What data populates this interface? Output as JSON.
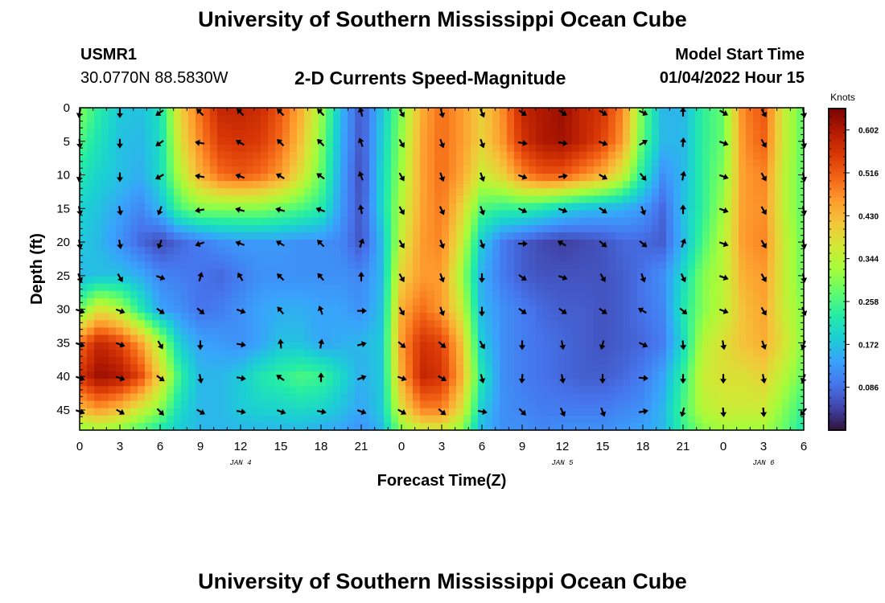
{
  "header": {
    "title": "University of Southern Mississippi Ocean Cube",
    "station_id": "USMR1",
    "station_coords": "30.0770N  88.5830W",
    "plot_title": "2-D Currents Speed-Magnitude",
    "start_label": "Model Start Time",
    "start_value": "01/04/2022 Hour 15"
  },
  "footer": {
    "title": "University of Southern Mississippi Ocean Cube"
  },
  "chart_data": {
    "type": "heatmap",
    "title": "2-D Currents Speed-Magnitude",
    "xlabel": "Forecast Time(Z)",
    "ylabel": "Depth (ft)",
    "x_tick_labels": [
      "0",
      "3",
      "6",
      "9",
      "12",
      "15",
      "18",
      "21",
      "0",
      "3",
      "6",
      "9",
      "12",
      "15",
      "18",
      "21",
      "0",
      "3",
      "6"
    ],
    "x_hours": [
      0,
      3,
      6,
      9,
      12,
      15,
      18,
      21,
      24,
      27,
      30,
      33,
      36,
      39,
      42,
      45,
      48,
      51,
      54
    ],
    "xlim": [
      0,
      54
    ],
    "date_labels": [
      {
        "label": "JAN 4",
        "hour": 12
      },
      {
        "label": "JAN 5",
        "hour": 36
      },
      {
        "label": "JAN 6",
        "hour": 51
      }
    ],
    "y_ticks": [
      0,
      5,
      10,
      15,
      20,
      25,
      30,
      35,
      40,
      45
    ],
    "ylim": [
      0,
      48
    ],
    "y_inverted": true,
    "colorbar": {
      "label": "Knots",
      "ticks": [
        "0.086",
        "0.172",
        "0.258",
        "0.344",
        "0.430",
        "0.516",
        "0.602"
      ],
      "range": [
        0.0,
        0.645
      ],
      "colors": [
        "#30123b",
        "#4145ab",
        "#4675ed",
        "#39a2fc",
        "#1bcfd4",
        "#24eca6",
        "#61fc6c",
        "#a4fc3b",
        "#d1e834",
        "#f3c63a",
        "#fe9b2d",
        "#f36315",
        "#d93806",
        "#b11901",
        "#7a0403"
      ]
    },
    "speed_grid_depths_ft": [
      0,
      5,
      10,
      15,
      20,
      25,
      30,
      35,
      40,
      45,
      48
    ],
    "speed_grid_hours": [
      0,
      1.5,
      3,
      4.5,
      6,
      7.5,
      9,
      10.5,
      12,
      13.5,
      15,
      16.5,
      18,
      19.5,
      21,
      22.5,
      24,
      25.5,
      27,
      28.5,
      30,
      31.5,
      33,
      34.5,
      36,
      37.5,
      39,
      40.5,
      42,
      43.5,
      45,
      46.5,
      48,
      49.5,
      51,
      52.5,
      54
    ],
    "speed_knots": [
      [
        0.3,
        0.23,
        0.18,
        0.17,
        0.21,
        0.4,
        0.5,
        0.58,
        0.58,
        0.57,
        0.52,
        0.44,
        0.32,
        0.16,
        0.06,
        0.17,
        0.3,
        0.44,
        0.5,
        0.46,
        0.4,
        0.47,
        0.58,
        0.6,
        0.62,
        0.58,
        0.56,
        0.48,
        0.28,
        0.16,
        0.16,
        0.24,
        0.28,
        0.48,
        0.52,
        0.36,
        0.27
      ],
      [
        0.26,
        0.21,
        0.17,
        0.16,
        0.2,
        0.38,
        0.48,
        0.55,
        0.56,
        0.55,
        0.5,
        0.42,
        0.3,
        0.15,
        0.06,
        0.18,
        0.31,
        0.45,
        0.5,
        0.46,
        0.4,
        0.46,
        0.56,
        0.6,
        0.61,
        0.58,
        0.54,
        0.46,
        0.27,
        0.16,
        0.16,
        0.24,
        0.28,
        0.47,
        0.51,
        0.36,
        0.27
      ],
      [
        0.22,
        0.19,
        0.17,
        0.15,
        0.2,
        0.34,
        0.44,
        0.5,
        0.52,
        0.5,
        0.46,
        0.38,
        0.28,
        0.14,
        0.05,
        0.19,
        0.32,
        0.45,
        0.5,
        0.45,
        0.36,
        0.4,
        0.48,
        0.52,
        0.52,
        0.48,
        0.44,
        0.36,
        0.22,
        0.12,
        0.16,
        0.24,
        0.3,
        0.46,
        0.48,
        0.35,
        0.27
      ],
      [
        0.19,
        0.17,
        0.14,
        0.11,
        0.16,
        0.26,
        0.3,
        0.3,
        0.3,
        0.3,
        0.28,
        0.26,
        0.23,
        0.13,
        0.06,
        0.19,
        0.34,
        0.45,
        0.49,
        0.4,
        0.26,
        0.24,
        0.24,
        0.22,
        0.19,
        0.17,
        0.16,
        0.15,
        0.13,
        0.08,
        0.17,
        0.24,
        0.32,
        0.46,
        0.47,
        0.35,
        0.27
      ],
      [
        0.18,
        0.16,
        0.12,
        0.08,
        0.05,
        0.08,
        0.1,
        0.12,
        0.13,
        0.13,
        0.13,
        0.12,
        0.12,
        0.11,
        0.06,
        0.16,
        0.36,
        0.46,
        0.48,
        0.36,
        0.18,
        0.1,
        0.07,
        0.05,
        0.04,
        0.05,
        0.06,
        0.08,
        0.08,
        0.07,
        0.16,
        0.26,
        0.34,
        0.46,
        0.48,
        0.36,
        0.28
      ],
      [
        0.16,
        0.17,
        0.17,
        0.15,
        0.11,
        0.1,
        0.09,
        0.08,
        0.1,
        0.12,
        0.12,
        0.12,
        0.12,
        0.12,
        0.11,
        0.16,
        0.4,
        0.46,
        0.46,
        0.32,
        0.15,
        0.1,
        0.07,
        0.06,
        0.06,
        0.06,
        0.06,
        0.07,
        0.09,
        0.12,
        0.2,
        0.3,
        0.34,
        0.44,
        0.46,
        0.36,
        0.28
      ],
      [
        0.28,
        0.38,
        0.33,
        0.23,
        0.14,
        0.12,
        0.09,
        0.1,
        0.12,
        0.14,
        0.15,
        0.15,
        0.14,
        0.14,
        0.12,
        0.17,
        0.44,
        0.5,
        0.46,
        0.36,
        0.16,
        0.12,
        0.1,
        0.08,
        0.07,
        0.07,
        0.06,
        0.07,
        0.09,
        0.11,
        0.22,
        0.3,
        0.35,
        0.42,
        0.45,
        0.36,
        0.3
      ],
      [
        0.5,
        0.58,
        0.54,
        0.46,
        0.33,
        0.18,
        0.14,
        0.13,
        0.12,
        0.14,
        0.17,
        0.17,
        0.14,
        0.15,
        0.16,
        0.18,
        0.46,
        0.56,
        0.54,
        0.42,
        0.18,
        0.12,
        0.1,
        0.09,
        0.08,
        0.07,
        0.06,
        0.07,
        0.08,
        0.1,
        0.2,
        0.34,
        0.38,
        0.42,
        0.44,
        0.38,
        0.3
      ],
      [
        0.56,
        0.62,
        0.6,
        0.54,
        0.4,
        0.24,
        0.16,
        0.16,
        0.18,
        0.22,
        0.24,
        0.26,
        0.25,
        0.2,
        0.15,
        0.18,
        0.44,
        0.58,
        0.56,
        0.44,
        0.22,
        0.12,
        0.1,
        0.09,
        0.08,
        0.07,
        0.07,
        0.08,
        0.1,
        0.14,
        0.24,
        0.36,
        0.38,
        0.38,
        0.4,
        0.34,
        0.28
      ],
      [
        0.42,
        0.46,
        0.42,
        0.36,
        0.3,
        0.2,
        0.16,
        0.16,
        0.18,
        0.19,
        0.19,
        0.2,
        0.19,
        0.17,
        0.14,
        0.18,
        0.38,
        0.48,
        0.48,
        0.38,
        0.18,
        0.12,
        0.11,
        0.1,
        0.1,
        0.1,
        0.1,
        0.11,
        0.12,
        0.16,
        0.26,
        0.34,
        0.36,
        0.36,
        0.36,
        0.3,
        0.24
      ],
      [
        0.3,
        0.32,
        0.3,
        0.26,
        0.22,
        0.18,
        0.16,
        0.16,
        0.16,
        0.16,
        0.16,
        0.16,
        0.15,
        0.14,
        0.12,
        0.16,
        0.3,
        0.36,
        0.36,
        0.3,
        0.16,
        0.12,
        0.12,
        0.11,
        0.12,
        0.12,
        0.12,
        0.13,
        0.14,
        0.16,
        0.24,
        0.3,
        0.32,
        0.32,
        0.32,
        0.28,
        0.22
      ]
    ],
    "vectors": {
      "note": "arrows show current direction at each hour (every 3 h) and depth; direction given as compass heading the flow points toward, degrees",
      "hours": [
        0,
        3,
        6,
        9,
        12,
        15,
        18,
        21,
        24,
        27,
        30,
        33,
        36,
        39,
        42,
        45,
        48,
        51,
        54
      ],
      "depths": [
        0,
        5,
        10,
        15,
        20,
        25,
        30,
        35,
        40,
        45
      ],
      "heading_deg": [
        [
          190,
          180,
          235,
          315,
          315,
          315,
          315,
          345,
          150,
          165,
          155,
          125,
          125,
          120,
          115,
          0,
          120,
          150,
          170
        ],
        [
          175,
          180,
          235,
          280,
          300,
          315,
          315,
          340,
          150,
          160,
          160,
          100,
          100,
          110,
          60,
          5,
          110,
          150,
          170
        ],
        [
          190,
          180,
          240,
          280,
          290,
          300,
          305,
          340,
          150,
          160,
          160,
          110,
          80,
          120,
          140,
          10,
          110,
          150,
          170
        ],
        [
          170,
          170,
          200,
          260,
          285,
          285,
          290,
          350,
          150,
          155,
          160,
          115,
          110,
          125,
          160,
          0,
          110,
          150,
          170
        ],
        [
          170,
          170,
          200,
          250,
          290,
          300,
          315,
          20,
          150,
          160,
          160,
          90,
          300,
          130,
          130,
          20,
          110,
          150,
          170
        ],
        [
          160,
          150,
          110,
          15,
          330,
          315,
          320,
          0,
          150,
          160,
          180,
          125,
          110,
          150,
          160,
          155,
          110,
          150,
          170
        ],
        [
          110,
          110,
          125,
          130,
          110,
          320,
          340,
          90,
          150,
          160,
          180,
          125,
          125,
          125,
          300,
          130,
          110,
          150,
          160
        ],
        [
          110,
          110,
          150,
          180,
          100,
          355,
          10,
          75,
          130,
          130,
          150,
          180,
          170,
          195,
          115,
          175,
          170,
          160,
          200
        ],
        [
          110,
          110,
          125,
          170,
          100,
          305,
          0,
          70,
          110,
          120,
          165,
          185,
          170,
          180,
          95,
          180,
          180,
          170,
          200
        ],
        [
          110,
          120,
          135,
          120,
          100,
          110,
          100,
          110,
          120,
          130,
          100,
          135,
          155,
          160,
          80,
          195,
          175,
          175,
          220
        ]
      ]
    }
  }
}
